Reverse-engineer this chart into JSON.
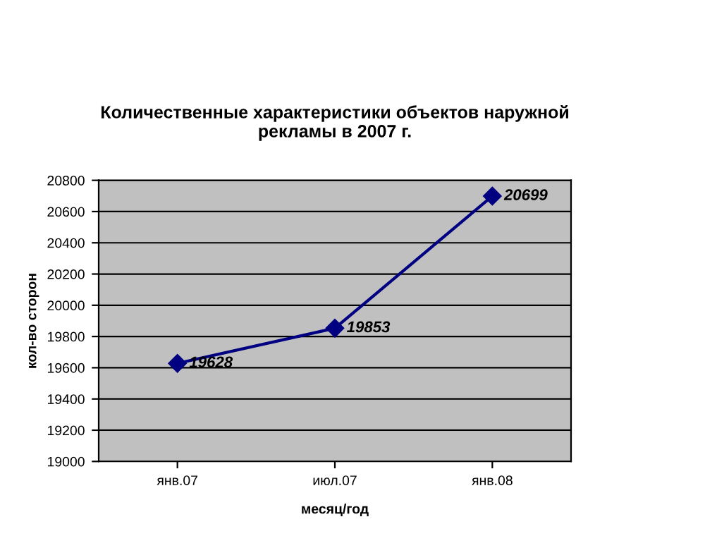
{
  "chart_data": {
    "type": "line",
    "title": "Количественные характеристики объектов наружной\nрекламы в 2007 г.",
    "xlabel": "месяц/год",
    "ylabel": "кол-во сторон",
    "categories": [
      "янв.07",
      "июл.07",
      "янв.08"
    ],
    "series": [
      {
        "color": "#000080",
        "values": [
          19628,
          19853,
          20699
        ]
      }
    ],
    "ylim": [
      19000,
      20800
    ],
    "yticks": [
      19000,
      19200,
      19400,
      19600,
      19800,
      20000,
      20200,
      20400,
      20600,
      20800
    ],
    "grid": "y",
    "marker": "diamond",
    "line_style": "solid",
    "data_labels": true
  }
}
